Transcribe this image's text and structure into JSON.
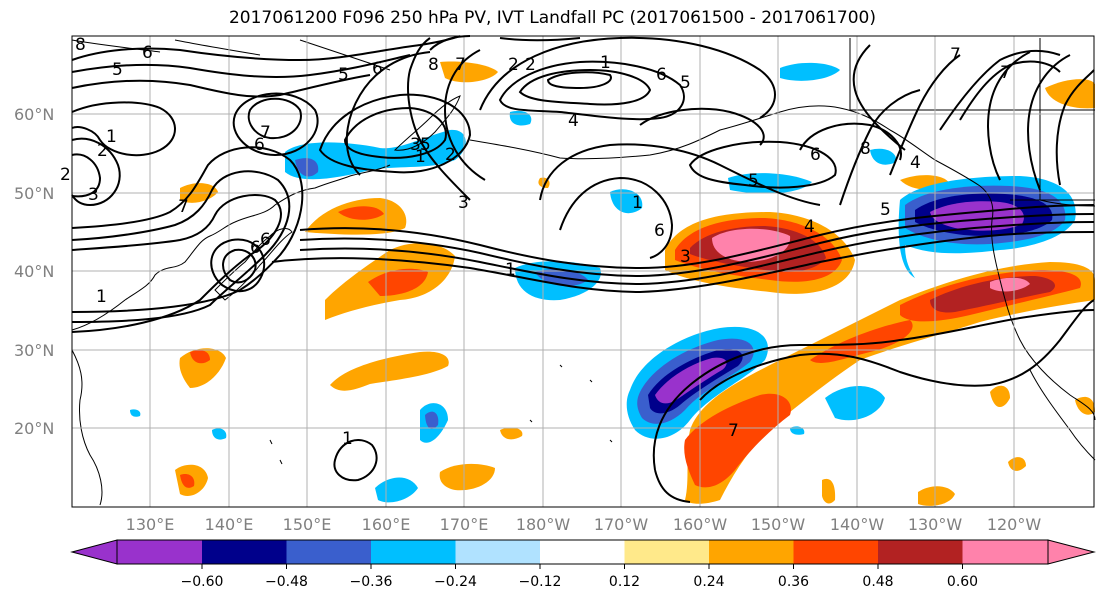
{
  "title": "2017061200 F096 250 hPa PV, IVT Landfall PC (2017061500 - 2017061700)",
  "lon_labels": [
    "130°E",
    "140°E",
    "150°E",
    "160°E",
    "170°E",
    "180°W",
    "170°W",
    "160°W",
    "150°W",
    "140°W",
    "130°W",
    "120°W"
  ],
  "lat_labels": [
    "60°N",
    "50°N",
    "40°N",
    "30°N",
    "20°N"
  ],
  "colorbar": {
    "ticks": [
      "−0.60",
      "−0.48",
      "−0.36",
      "−0.24",
      "−0.12",
      "0.12",
      "0.24",
      "0.36",
      "0.48",
      "0.60"
    ],
    "colors": [
      "#9932cc",
      "#00008b",
      "#3a5fcd",
      "#00bfff",
      "#b0e2ff",
      "#ffffff",
      "#ffe98a",
      "#ffa500",
      "#ff4500",
      "#b22222",
      "#ff82ab"
    ]
  },
  "contour_labels": [
    "8",
    "6",
    "5",
    "6",
    "5",
    "6",
    "8",
    "7",
    "2",
    "2",
    "1",
    "1",
    "2",
    "7",
    "6",
    "5",
    "4",
    "1",
    "2",
    "3",
    "2",
    "7",
    "1",
    "3",
    "6",
    "3",
    "6",
    "5",
    "4",
    "5",
    "6",
    "8",
    "4",
    "7",
    "5",
    "3",
    "1",
    "1",
    "6",
    "1",
    "7",
    "7"
  ],
  "colors": {
    "grid": "#b0b0b0",
    "coast": "#000000",
    "contour": "#000000"
  }
}
